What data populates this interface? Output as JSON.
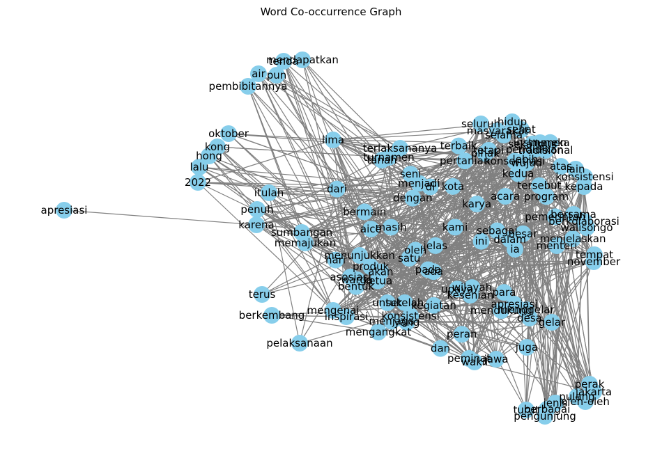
{
  "title": "Word Co-occurrence Graph",
  "node_color": "#87ceeb",
  "edge_color": "#808080",
  "nodes": [
    "apresiasi",
    "oktober",
    "kong",
    "hong",
    "lalu",
    "2022",
    "lima",
    "mendapatkan",
    "tenda",
    "air",
    "pun",
    "pembibitannya",
    "terus",
    "berkembang",
    "pelaksanaan",
    "perak",
    "jakarta",
    "pulang",
    "oleh-oleh",
    "jenis",
    "berbagai",
    "turut",
    "pengunjung",
    "gelar",
    "kota",
    "apresiasi-k",
    "atas",
    "konsistensi",
    "kepada",
    "lain",
    "selama",
    "seluruh",
    "hidup",
    "masyarakat",
    "sehat",
    "instrumen",
    "tradisional",
    "upaya",
    "walisongo",
    "november",
    "tempat",
    "bersama",
    "berkolaborasi",
    "ia",
    "menteri",
    "menjelaskan",
    "itulah",
    "penuh",
    "karena",
    "sumbangan",
    "memajukan",
    "besar",
    "peran",
    "menunjukkan",
    "wujud",
    "terlaksananya",
    "turnamen",
    "tanah",
    "untuk",
    "sekaligus",
    "aice",
    "kedua",
    "mendukung",
    "konsistensi-k",
    "pertanian",
    "kami",
    "dalam",
    "juga",
    "warga",
    "pendidikan",
    "dari",
    "karya",
    "desa",
    "menjaga",
    "terbaik",
    "asosiasi",
    "sebagai",
    "wilayah",
    "satu",
    "tetapi",
    "oleh",
    "mengenai",
    "inspirasi",
    "produk",
    "mengangkat",
    "jawa",
    "wakil",
    "kesenian",
    "bentuk",
    "peminat",
    "bermain",
    "acara",
    "menggelar",
    "setelah",
    "konsentrasi",
    "masih",
    "pemerintah",
    "para",
    "ketua",
    "pihak",
    "jelas",
    "pada",
    "kegiatan",
    "hari",
    "mereka",
    "seni",
    "ini",
    "dan",
    "yang",
    "tersebut",
    "di",
    "dengan",
    "ada",
    "akan",
    "lebih",
    "menjadi",
    "program"
  ],
  "edge_count": 742
}
